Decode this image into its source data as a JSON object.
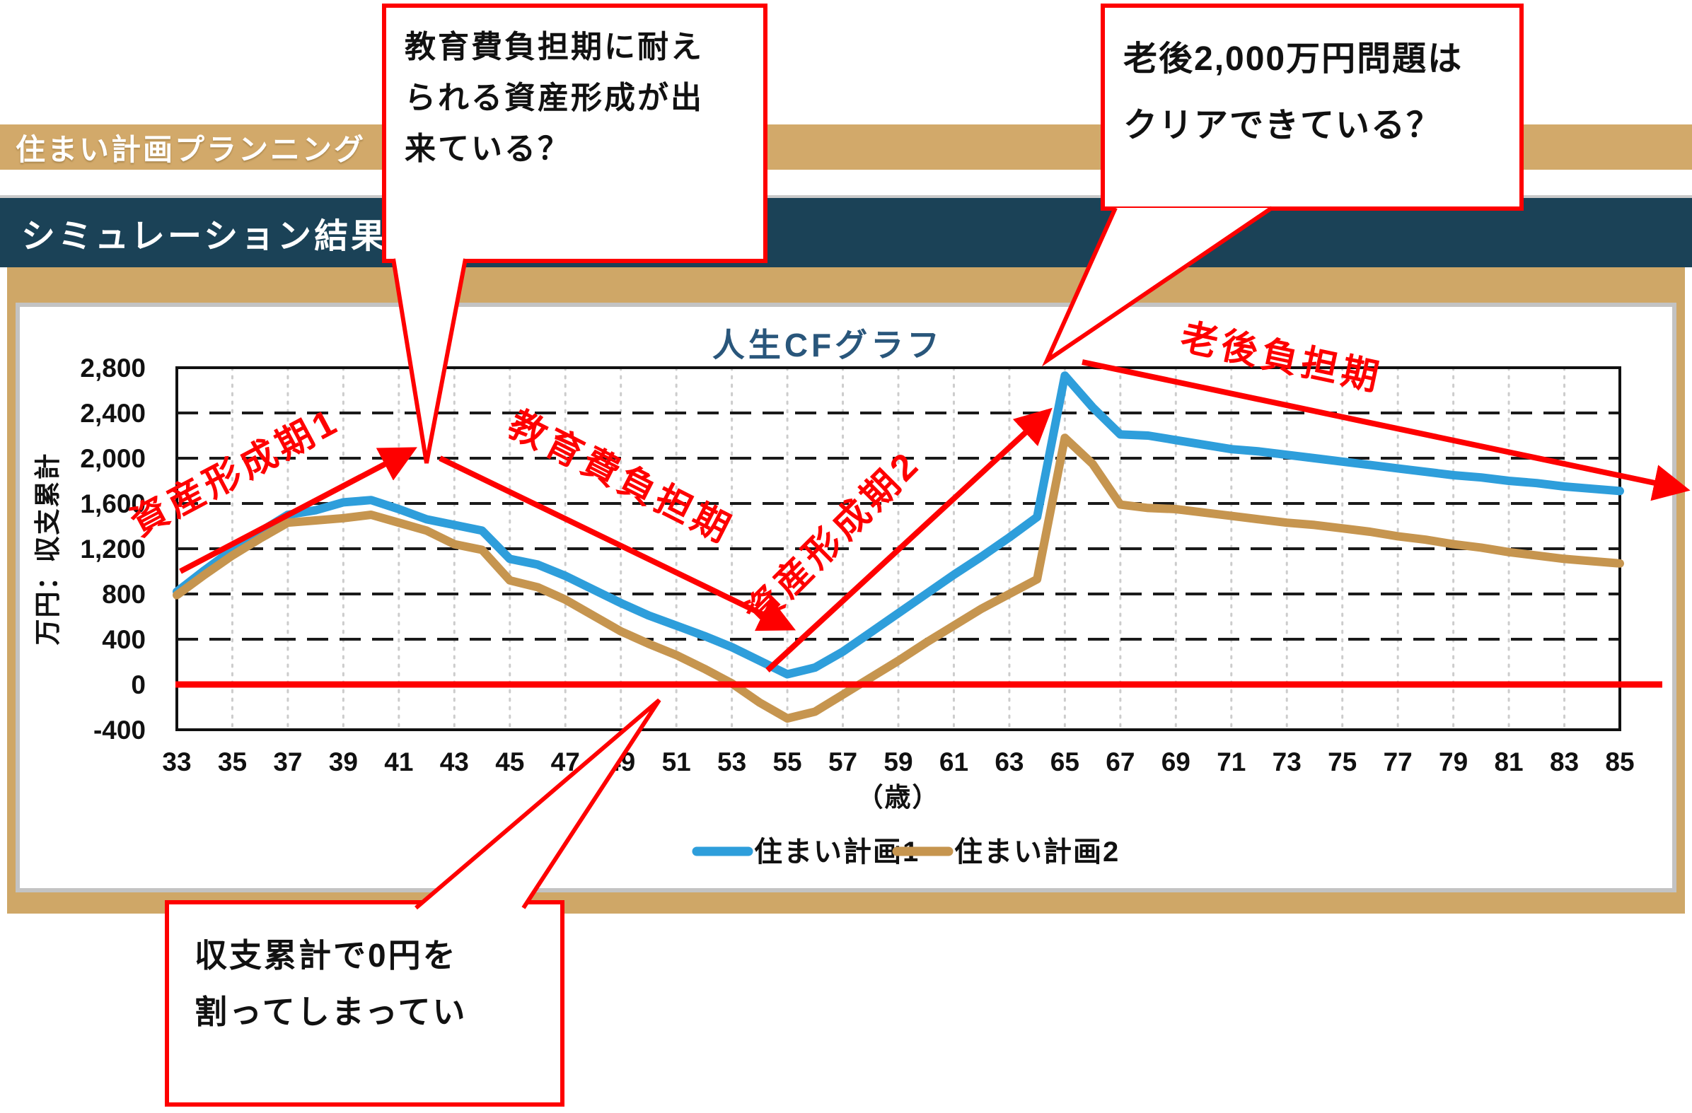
{
  "header": {
    "app_title": "住まい計画プランニング",
    "section_title": "シミュレーション結果"
  },
  "callouts": {
    "education": {
      "lines": [
        "教育費負担期に耐え",
        "られる資産形成が出",
        "来ている？"
      ]
    },
    "retirement": {
      "lines": [
        "老後2,000万円問題は",
        "クリアできている？"
      ]
    },
    "deficit": {
      "lines": [
        "収支累計で0円を",
        "割ってしまってい"
      ]
    }
  },
  "colors": {
    "accent_red": "#fe0000",
    "banner_tan": "#d2a96a",
    "banner_navy": "#1b4257",
    "panel_border_tan": "#cfa767",
    "panel_border_silver": "#c3c3c3",
    "title_blue": "#29567b",
    "grid_black": "#1a1a1a",
    "grid_dotted": "#cccccc"
  },
  "chart_data": {
    "type": "line",
    "title": "人生CFグラフ",
    "xlabel": "（歳）",
    "ylabel": "万円：収支累計",
    "x_range": [
      33,
      85
    ],
    "ylim": [
      -400,
      2800
    ],
    "y_tick_step": 400,
    "grid": true,
    "legend_position": "bottom",
    "x_ticks": [
      33,
      35,
      37,
      39,
      41,
      43,
      45,
      47,
      49,
      51,
      53,
      55,
      57,
      59,
      61,
      63,
      65,
      67,
      69,
      71,
      73,
      75,
      77,
      79,
      81,
      83,
      85
    ],
    "x": [
      33,
      34,
      35,
      36,
      37,
      38,
      39,
      40,
      41,
      42,
      43,
      44,
      45,
      46,
      47,
      48,
      49,
      50,
      51,
      52,
      53,
      54,
      55,
      56,
      57,
      58,
      59,
      60,
      61,
      62,
      63,
      64,
      65,
      66,
      67,
      68,
      69,
      70,
      71,
      72,
      73,
      74,
      75,
      76,
      77,
      78,
      79,
      80,
      81,
      82,
      83,
      84,
      85
    ],
    "series": [
      {
        "name": "住まい計画1",
        "color": "#2e9edb",
        "values": [
          820,
          1010,
          1190,
          1350,
          1500,
          1540,
          1610,
          1630,
          1550,
          1460,
          1410,
          1360,
          1110,
          1060,
          960,
          840,
          720,
          610,
          520,
          430,
          330,
          210,
          90,
          150,
          290,
          460,
          630,
          800,
          970,
          1130,
          1300,
          1480,
          2730,
          2450,
          2210,
          2200,
          2160,
          2120,
          2080,
          2060,
          2030,
          2000,
          1970,
          1940,
          1910,
          1880,
          1850,
          1830,
          1800,
          1780,
          1750,
          1730,
          1710
        ]
      },
      {
        "name": "住まい計画2",
        "color": "#c6954f",
        "values": [
          790,
          970,
          1140,
          1290,
          1430,
          1450,
          1470,
          1500,
          1430,
          1360,
          1240,
          1190,
          920,
          860,
          750,
          610,
          470,
          360,
          260,
          140,
          10,
          -160,
          -300,
          -240,
          -90,
          60,
          210,
          370,
          520,
          670,
          800,
          930,
          2180,
          1950,
          1590,
          1560,
          1550,
          1520,
          1490,
          1460,
          1430,
          1410,
          1380,
          1350,
          1310,
          1280,
          1240,
          1210,
          1170,
          1140,
          1110,
          1090,
          1070
        ]
      }
    ],
    "zero_line": {
      "value": 0,
      "color": "#fe0000"
    },
    "annotations": [
      "資産形成期1",
      "教育費負担期",
      "資産形成期2",
      "老後負担期"
    ]
  }
}
